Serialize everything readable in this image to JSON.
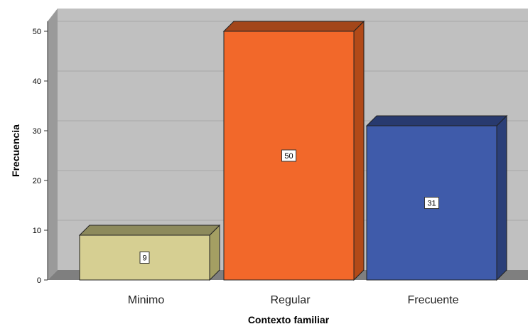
{
  "chart_data": {
    "type": "bar",
    "title": "",
    "xlabel": "Contexto familiar",
    "ylabel": "Frecuencia",
    "categories": [
      "Minimo",
      "Regular",
      "Frecuente"
    ],
    "values": [
      9,
      50,
      31
    ],
    "data_labels": [
      "9",
      "50",
      "31"
    ],
    "yticks": [
      "0",
      "10",
      "20",
      "30",
      "40",
      "50"
    ],
    "ylim": [
      0,
      52
    ],
    "grid": true,
    "legend": "none",
    "style": "3d",
    "colors": {
      "plot_background": "#c0c0c0",
      "floor": "#7f7f7f",
      "bars": [
        "#d6cf92",
        "#f2682a",
        "#3f5baa"
      ],
      "bar_tops": [
        "#8d8a5c",
        "#a3461a",
        "#283a6f"
      ],
      "bar_sides": [
        "#a49f63",
        "#b24a18",
        "#2b3f78"
      ]
    }
  }
}
